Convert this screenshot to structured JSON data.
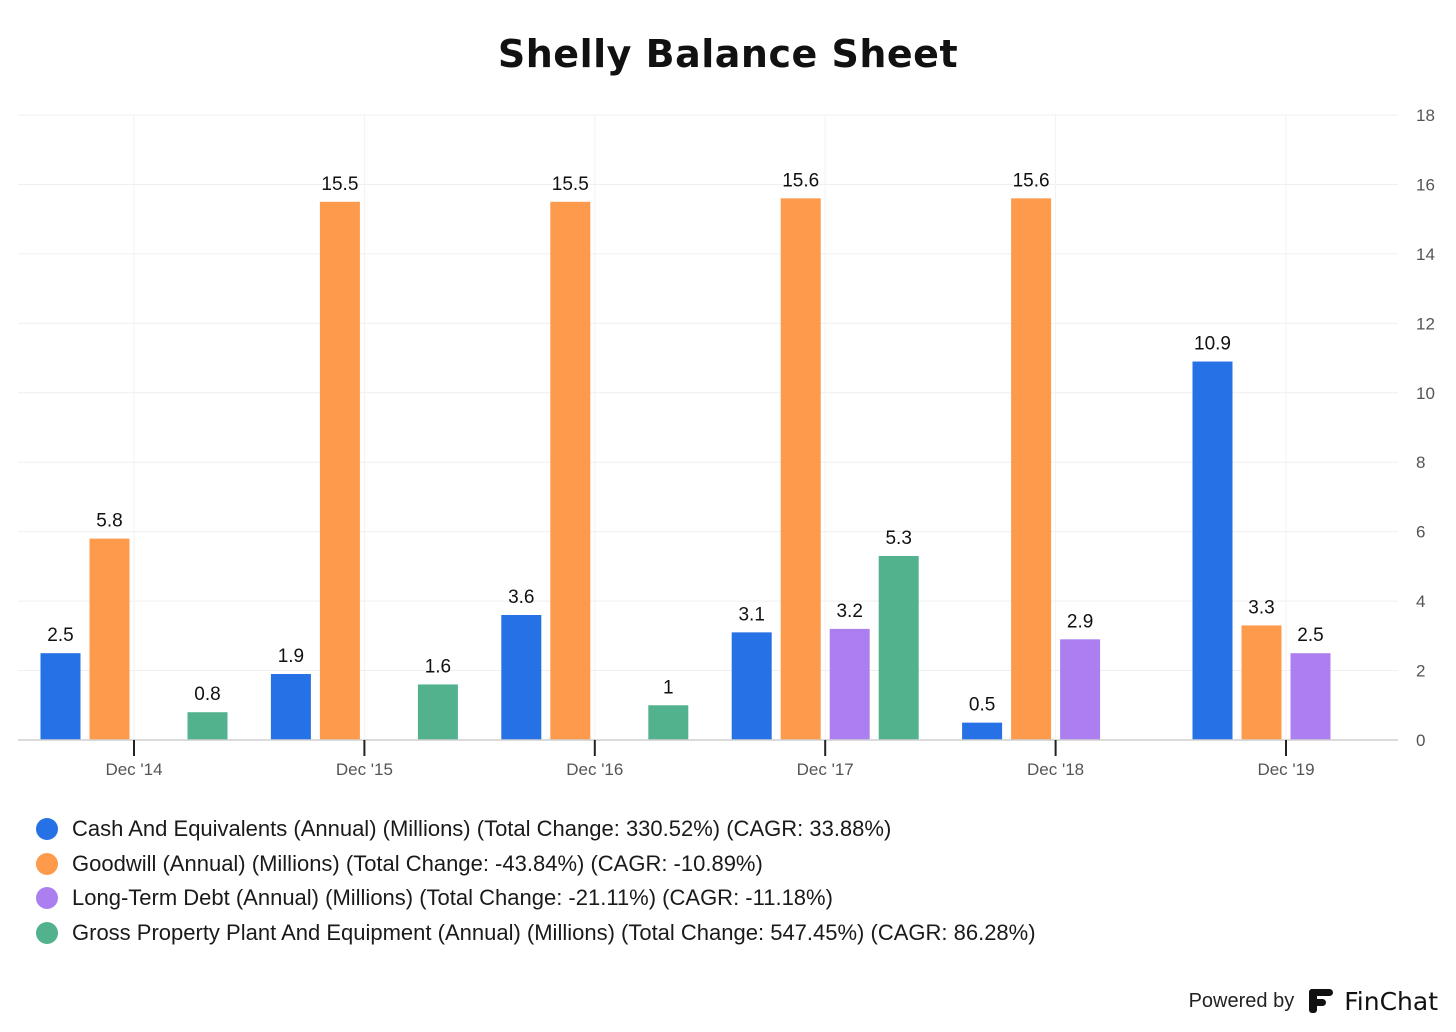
{
  "chart_data": {
    "type": "bar",
    "title": "Shelly Balance Sheet",
    "categories": [
      "Dec '14",
      "Dec '15",
      "Dec '16",
      "Dec '17",
      "Dec '18",
      "Dec '19"
    ],
    "series": [
      {
        "name": "Cash And Equivalents (Annual) (Millions) (Total Change: 330.52%) (CAGR: 33.88%)",
        "color": "#2671e6",
        "values": [
          2.5,
          1.9,
          3.6,
          3.1,
          0.5,
          10.9
        ]
      },
      {
        "name": "Goodwill (Annual) (Millions) (Total Change: -43.84%) (CAGR: -10.89%)",
        "color": "#fd9a4c",
        "values": [
          5.8,
          15.5,
          15.5,
          15.6,
          15.6,
          3.3
        ]
      },
      {
        "name": "Long-Term Debt (Annual) (Millions) (Total Change: -21.11%) (CAGR: -11.18%)",
        "color": "#ac7ff1",
        "values": [
          null,
          null,
          null,
          3.2,
          2.9,
          2.5
        ]
      },
      {
        "name": "Gross Property Plant And Equipment (Annual) (Millions) (Total Change: 547.45%) (CAGR: 86.28%)",
        "color": "#52b28e",
        "values": [
          0.8,
          1.6,
          1,
          5.3,
          null,
          null
        ]
      }
    ],
    "ylim": [
      0,
      18
    ],
    "yticks": [
      0,
      2,
      4,
      6,
      8,
      10,
      12,
      14,
      16,
      18
    ],
    "y_axis_side": "right",
    "grid": true,
    "legend": "bottom-left"
  },
  "branding": {
    "powered_by": "Powered by",
    "brand": "FinChat"
  }
}
